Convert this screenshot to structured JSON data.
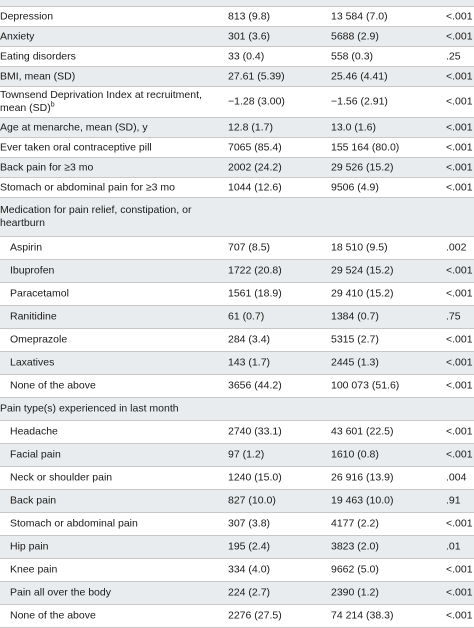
{
  "rows": [
    {
      "label": "",
      "a": "",
      "b": "",
      "p": "",
      "h": 6,
      "shaded": true
    },
    {
      "label": "Depression",
      "a": "813 (9.8)",
      "b": "13 584 (7.0)",
      "p": "<.001",
      "h": 19,
      "shaded": false
    },
    {
      "label": "Anxiety",
      "a": "301 (3.6)",
      "b": "5688 (2.9)",
      "p": "<.001",
      "h": 19,
      "shaded": true
    },
    {
      "label": "Eating disorders",
      "a": "33 (0.4)",
      "b": "558 (0.3)",
      "p": ".25",
      "h": 19,
      "shaded": false
    },
    {
      "label": "BMI, mean (SD)",
      "a": "27.61 (5.39)",
      "b": "25.46 (4.41)",
      "p": "<.001",
      "h": 19,
      "shaded": true
    },
    {
      "label": "Townsend Deprivation Index at recruitment, mean (SD)",
      "sup": "b",
      "a": "−1.28 (3.00)",
      "b": "−1.56 (2.91)",
      "p": "<.001",
      "h": 30,
      "shaded": false
    },
    {
      "label": "Age at menarche, mean (SD), y",
      "a": "12.8 (1.7)",
      "b": "13.0 (1.6)",
      "p": "<.001",
      "h": 19,
      "shaded": true
    },
    {
      "label": "Ever taken oral contraceptive pill",
      "a": "7065 (85.4)",
      "b": "155 164 (80.0)",
      "p": "<.001",
      "h": 19,
      "shaded": false
    },
    {
      "label": "Back pain for ≥3 mo",
      "a": "2002 (24.2)",
      "b": "29 526 (15.2)",
      "p": "<.001",
      "h": 19,
      "shaded": true
    },
    {
      "label": "Stomach or abdominal pain for ≥3 mo",
      "a": "1044 (12.6)",
      "b": "9506 (4.9)",
      "p": "<.001",
      "h": 19,
      "shaded": false
    },
    {
      "label": "Medication for pain relief, constipation, or heartburn",
      "a": "",
      "b": "",
      "p": "",
      "h": 38,
      "shaded": true
    },
    {
      "label": "Aspirin",
      "a": "707 (8.5)",
      "b": "18 510 (9.5)",
      "p": ".002",
      "h": 22,
      "shaded": false,
      "sub": true
    },
    {
      "label": "Ibuprofen",
      "a": "1722 (20.8)",
      "b": "29 524 (15.2)",
      "p": "<.001",
      "h": 22,
      "shaded": true,
      "sub": true
    },
    {
      "label": "Paracetamol",
      "a": "1561 (18.9)",
      "b": "29 410 (15.2)",
      "p": "<.001",
      "h": 22,
      "shaded": false,
      "sub": true
    },
    {
      "label": "Ranitidine",
      "a": "61 (0.7)",
      "b": "1384 (0.7)",
      "p": ".75",
      "h": 22,
      "shaded": true,
      "sub": true
    },
    {
      "label": "Omeprazole",
      "a": "284 (3.4)",
      "b": "5315 (2.7)",
      "p": "<.001",
      "h": 22,
      "shaded": false,
      "sub": true
    },
    {
      "label": "Laxatives",
      "a": "143 (1.7)",
      "b": "2445 (1.3)",
      "p": "<.001",
      "h": 22,
      "shaded": true,
      "sub": true
    },
    {
      "label": "None of the above",
      "a": "3656 (44.2)",
      "b": "100 073 (51.6)",
      "p": "<.001",
      "h": 22,
      "shaded": false,
      "sub": true
    },
    {
      "label": "Pain type(s) experienced in last month",
      "a": "",
      "b": "",
      "p": "",
      "h": 22,
      "shaded": true
    },
    {
      "label": "Headache",
      "a": "2740 (33.1)",
      "b": "43 601 (22.5)",
      "p": "<.001",
      "h": 22,
      "shaded": false,
      "sub": true
    },
    {
      "label": "Facial pain",
      "a": "97 (1.2)",
      "b": "1610 (0.8)",
      "p": "<.001",
      "h": 22,
      "shaded": true,
      "sub": true
    },
    {
      "label": "Neck or shoulder pain",
      "a": "1240 (15.0)",
      "b": "26 916 (13.9)",
      "p": ".004",
      "h": 22,
      "shaded": false,
      "sub": true
    },
    {
      "label": "Back pain",
      "a": "827 (10.0)",
      "b": "19 463 (10.0)",
      "p": ".91",
      "h": 22,
      "shaded": true,
      "sub": true
    },
    {
      "label": "Stomach or abdominal pain",
      "a": "307 (3.8)",
      "b": "4177 (2.2)",
      "p": "<.001",
      "h": 22,
      "shaded": false,
      "sub": true
    },
    {
      "label": "Hip pain",
      "a": "195 (2.4)",
      "b": "3823 (2.0)",
      "p": ".01",
      "h": 22,
      "shaded": true,
      "sub": true
    },
    {
      "label": "Knee pain",
      "a": "334 (4.0)",
      "b": "9662 (5.0)",
      "p": "<.001",
      "h": 22,
      "shaded": false,
      "sub": true
    },
    {
      "label": "Pain all over the body",
      "a": "224 (2.7)",
      "b": "2390 (1.2)",
      "p": "<.001",
      "h": 22,
      "shaded": true,
      "sub": true
    },
    {
      "label": "None of the above",
      "a": "2276 (27.5)",
      "b": "74 214 (38.3)",
      "p": "<.001",
      "h": 22,
      "shaded": false,
      "sub": true
    }
  ]
}
